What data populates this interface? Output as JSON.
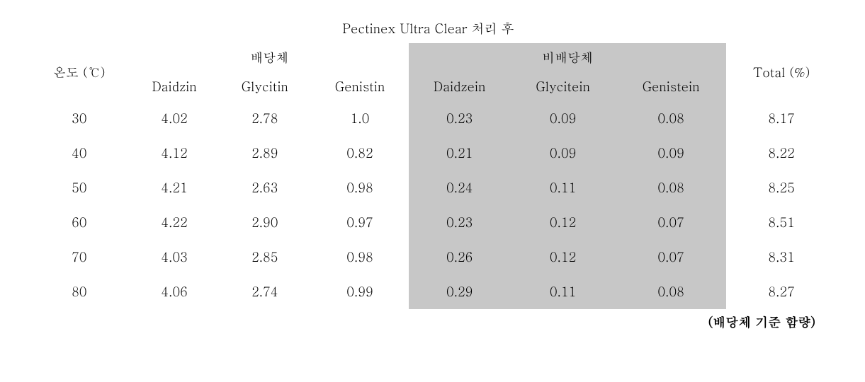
{
  "header": {
    "title": "Pectinex Ultra Clear 처리 후",
    "row_label": "온도 (℃)",
    "group1": "배당체",
    "group2": "비배당체",
    "total": "Total (%)",
    "sub": [
      "Daidzin",
      "Glycitin",
      "Genistin",
      "Daidzein",
      "Glycitein",
      "Genistein"
    ]
  },
  "rows": [
    {
      "t": "30",
      "v": [
        "4.02",
        "2.78",
        "1.0",
        "0.23",
        "0.09",
        "0.08"
      ],
      "tot": "8.17"
    },
    {
      "t": "40",
      "v": [
        "4.12",
        "2.89",
        "0.82",
        "0.21",
        "0.09",
        "0.09"
      ],
      "tot": "8.22"
    },
    {
      "t": "50",
      "v": [
        "4.21",
        "2.63",
        "0.98",
        "0.24",
        "0.11",
        "0.08"
      ],
      "tot": "8.25"
    },
    {
      "t": "60",
      "v": [
        "4.22",
        "2.90",
        "0.97",
        "0.23",
        "0.12",
        "0.07"
      ],
      "tot": "8.51"
    },
    {
      "t": "70",
      "v": [
        "4.03",
        "2.85",
        "0.98",
        "0.26",
        "0.12",
        "0.07"
      ],
      "tot": "8.31"
    },
    {
      "t": "80",
      "v": [
        "4.06",
        "2.74",
        "0.99",
        "0.29",
        "0.11",
        "0.08"
      ],
      "tot": "8.27"
    }
  ],
  "footnote": "(배당체 기준 함량)",
  "style": {
    "shade_bg": "#c7c7c7",
    "shade_cols": [
      3,
      4,
      5
    ],
    "col_count": 8,
    "font_size_pt": 18,
    "border_color": "#000000"
  }
}
